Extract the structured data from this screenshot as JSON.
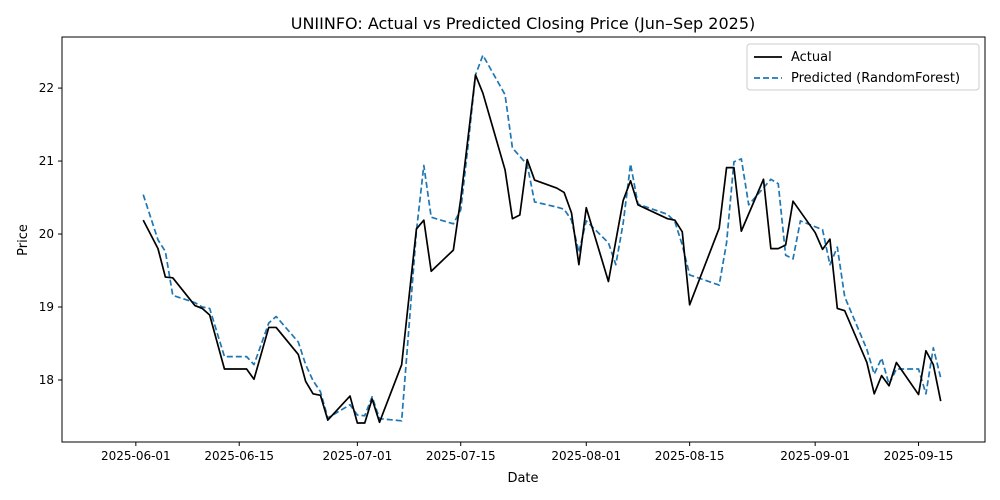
{
  "chart_data": {
    "type": "line",
    "title": "UNIINFO: Actual vs Predicted Closing Price (Jun–Sep 2025)",
    "xlabel": "Date",
    "ylabel": "Price",
    "xlim": [
      "2025-05-22",
      "2025-09-24"
    ],
    "ylim": [
      17.15,
      22.7
    ],
    "x_ticks": [
      "2025-06-01",
      "2025-06-15",
      "2025-07-01",
      "2025-07-15",
      "2025-08-01",
      "2025-08-15",
      "2025-09-01",
      "2025-09-15"
    ],
    "y_ticks": [
      18,
      19,
      20,
      21,
      22
    ],
    "grid": false,
    "legend_position": "top-right",
    "series": [
      {
        "name": "Actual",
        "color": "#000000",
        "style": "solid",
        "points": [
          [
            "2025-06-02",
            20.19
          ],
          [
            "2025-06-04",
            19.8
          ],
          [
            "2025-06-05",
            19.41
          ],
          [
            "2025-06-06",
            19.4
          ],
          [
            "2025-06-09",
            19.02
          ],
          [
            "2025-06-10",
            18.98
          ],
          [
            "2025-06-11",
            18.89
          ],
          [
            "2025-06-13",
            18.15
          ],
          [
            "2025-06-16",
            18.15
          ],
          [
            "2025-06-17",
            18.01
          ],
          [
            "2025-06-19",
            18.72
          ],
          [
            "2025-06-20",
            18.72
          ],
          [
            "2025-06-23",
            18.35
          ],
          [
            "2025-06-24",
            17.98
          ],
          [
            "2025-06-25",
            17.81
          ],
          [
            "2025-06-26",
            17.79
          ],
          [
            "2025-06-27",
            17.45
          ],
          [
            "2025-06-30",
            17.78
          ],
          [
            "2025-07-01",
            17.41
          ],
          [
            "2025-07-02",
            17.41
          ],
          [
            "2025-07-03",
            17.74
          ],
          [
            "2025-07-04",
            17.42
          ],
          [
            "2025-07-07",
            18.21
          ],
          [
            "2025-07-09",
            20.07
          ],
          [
            "2025-07-10",
            20.19
          ],
          [
            "2025-07-11",
            19.49
          ],
          [
            "2025-07-14",
            19.78
          ],
          [
            "2025-07-15",
            20.48
          ],
          [
            "2025-07-17",
            22.18
          ],
          [
            "2025-07-18",
            21.93
          ],
          [
            "2025-07-21",
            20.88
          ],
          [
            "2025-07-22",
            20.21
          ],
          [
            "2025-07-23",
            20.26
          ],
          [
            "2025-07-24",
            21.02
          ],
          [
            "2025-07-25",
            20.74
          ],
          [
            "2025-07-28",
            20.63
          ],
          [
            "2025-07-29",
            20.57
          ],
          [
            "2025-07-30",
            20.29
          ],
          [
            "2025-07-31",
            19.58
          ],
          [
            "2025-08-01",
            20.36
          ],
          [
            "2025-08-04",
            19.35
          ],
          [
            "2025-08-06",
            20.46
          ],
          [
            "2025-08-07",
            20.73
          ],
          [
            "2025-08-08",
            20.4
          ],
          [
            "2025-08-12",
            20.21
          ],
          [
            "2025-08-13",
            20.19
          ],
          [
            "2025-08-14",
            20.03
          ],
          [
            "2025-08-15",
            19.03
          ],
          [
            "2025-08-19",
            20.08
          ],
          [
            "2025-08-20",
            20.91
          ],
          [
            "2025-08-21",
            20.91
          ],
          [
            "2025-08-22",
            20.04
          ],
          [
            "2025-08-25",
            20.75
          ],
          [
            "2025-08-26",
            19.8
          ],
          [
            "2025-08-27",
            19.8
          ],
          [
            "2025-08-28",
            19.85
          ],
          [
            "2025-08-29",
            20.45
          ],
          [
            "2025-09-01",
            20.02
          ],
          [
            "2025-09-02",
            19.79
          ],
          [
            "2025-09-03",
            19.93
          ],
          [
            "2025-09-04",
            18.98
          ],
          [
            "2025-09-05",
            18.95
          ],
          [
            "2025-09-08",
            18.24
          ],
          [
            "2025-09-09",
            17.81
          ],
          [
            "2025-09-10",
            18.06
          ],
          [
            "2025-09-11",
            17.92
          ],
          [
            "2025-09-12",
            18.24
          ],
          [
            "2025-09-15",
            17.8
          ],
          [
            "2025-09-16",
            18.4
          ],
          [
            "2025-09-17",
            18.21
          ],
          [
            "2025-09-18",
            17.71
          ]
        ]
      },
      {
        "name": "Predicted (RandomForest)",
        "color": "#1f77b4",
        "style": "dashed",
        "points": [
          [
            "2025-06-02",
            20.54
          ],
          [
            "2025-06-04",
            19.92
          ],
          [
            "2025-06-05",
            19.76
          ],
          [
            "2025-06-06",
            19.16
          ],
          [
            "2025-06-09",
            19.06
          ],
          [
            "2025-06-10",
            19.0
          ],
          [
            "2025-06-11",
            18.98
          ],
          [
            "2025-06-13",
            18.32
          ],
          [
            "2025-06-16",
            18.32
          ],
          [
            "2025-06-17",
            18.21
          ],
          [
            "2025-06-19",
            18.78
          ],
          [
            "2025-06-20",
            18.87
          ],
          [
            "2025-06-23",
            18.52
          ],
          [
            "2025-06-24",
            18.21
          ],
          [
            "2025-06-25",
            17.99
          ],
          [
            "2025-06-26",
            17.84
          ],
          [
            "2025-06-27",
            17.48
          ],
          [
            "2025-06-30",
            17.66
          ],
          [
            "2025-07-01",
            17.52
          ],
          [
            "2025-07-02",
            17.51
          ],
          [
            "2025-07-03",
            17.77
          ],
          [
            "2025-07-04",
            17.47
          ],
          [
            "2025-07-07",
            17.44
          ],
          [
            "2025-07-09",
            20.04
          ],
          [
            "2025-07-10",
            20.94
          ],
          [
            "2025-07-11",
            20.23
          ],
          [
            "2025-07-14",
            20.14
          ],
          [
            "2025-07-15",
            20.33
          ],
          [
            "2025-07-16",
            21.22
          ],
          [
            "2025-07-17",
            22.18
          ],
          [
            "2025-07-18",
            22.45
          ],
          [
            "2025-07-21",
            21.91
          ],
          [
            "2025-07-22",
            21.18
          ],
          [
            "2025-07-24",
            20.95
          ],
          [
            "2025-07-25",
            20.44
          ],
          [
            "2025-07-28",
            20.37
          ],
          [
            "2025-07-29",
            20.34
          ],
          [
            "2025-07-30",
            20.19
          ],
          [
            "2025-07-31",
            19.75
          ],
          [
            "2025-08-01",
            20.18
          ],
          [
            "2025-08-04",
            19.88
          ],
          [
            "2025-08-05",
            19.58
          ],
          [
            "2025-08-06",
            20.15
          ],
          [
            "2025-08-07",
            20.96
          ],
          [
            "2025-08-08",
            20.41
          ],
          [
            "2025-08-12",
            20.27
          ],
          [
            "2025-08-13",
            20.17
          ],
          [
            "2025-08-14",
            19.85
          ],
          [
            "2025-08-15",
            19.44
          ],
          [
            "2025-08-19",
            19.3
          ],
          [
            "2025-08-20",
            19.88
          ],
          [
            "2025-08-21",
            20.99
          ],
          [
            "2025-08-22",
            21.03
          ],
          [
            "2025-08-23",
            20.4
          ],
          [
            "2025-08-26",
            20.75
          ],
          [
            "2025-08-27",
            20.69
          ],
          [
            "2025-08-28",
            19.71
          ],
          [
            "2025-08-29",
            19.66
          ],
          [
            "2025-08-30",
            20.18
          ],
          [
            "2025-09-01",
            20.1
          ],
          [
            "2025-09-02",
            20.06
          ],
          [
            "2025-09-03",
            19.58
          ],
          [
            "2025-09-04",
            19.82
          ],
          [
            "2025-09-05",
            19.14
          ],
          [
            "2025-09-08",
            18.42
          ],
          [
            "2025-09-09",
            18.08
          ],
          [
            "2025-09-10",
            18.3
          ],
          [
            "2025-09-11",
            17.94
          ],
          [
            "2025-09-12",
            18.15
          ],
          [
            "2025-09-15",
            18.15
          ],
          [
            "2025-09-16",
            17.81
          ],
          [
            "2025-09-17",
            18.44
          ],
          [
            "2025-09-18",
            18.03
          ]
        ]
      }
    ]
  }
}
